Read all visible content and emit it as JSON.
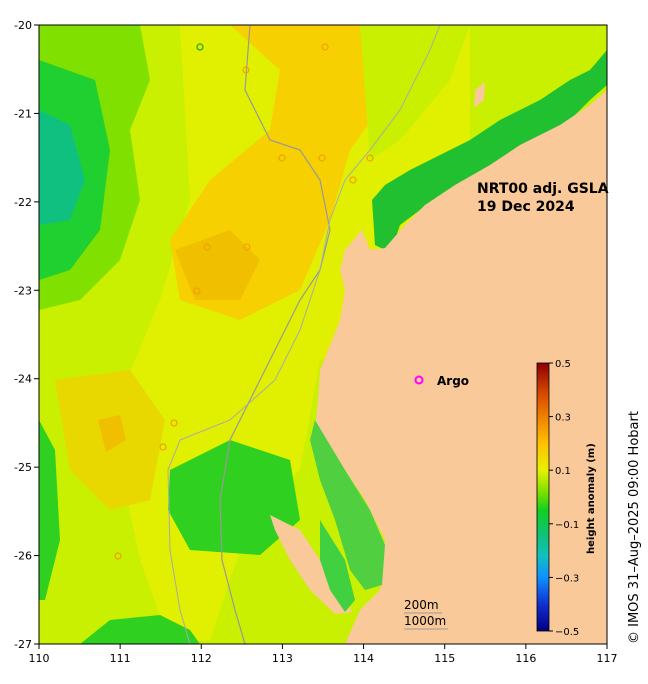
{
  "chart_data": {
    "type": "heatmap",
    "title_line1": "NRT00 adj. GSLA",
    "title_line2": "19 Dec 2024",
    "x_ticks": [
      "110",
      "111",
      "112",
      "113",
      "114",
      "115",
      "116",
      "117"
    ],
    "y_ticks": [
      "-20",
      "-21",
      "-22",
      "-23",
      "-24",
      "-25",
      "-26",
      "-27"
    ],
    "xlim": [
      110,
      117
    ],
    "ylim": [
      -27,
      -20
    ],
    "colorbar": {
      "title": "height anomaly (m)",
      "range": [
        -0.5,
        0.5
      ],
      "ticks": [
        "0.5",
        "0.3",
        "0.1",
        "−0.1",
        "−0.3",
        "−0.5"
      ]
    },
    "legend": {
      "symbol": "o",
      "label": "Argo",
      "lon": 114.7,
      "lat": -24.0,
      "color": "#ff00ff"
    },
    "isobaths": [
      "200m",
      "1000m"
    ],
    "credit": "© IMOS 31–Aug–2025 09:00 Hobart",
    "colors": {
      "land": "#f9c99a",
      "ocean_base": "#c8f000",
      "coast": "#999999"
    }
  }
}
